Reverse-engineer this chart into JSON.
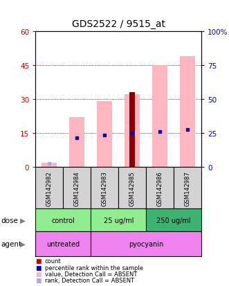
{
  "title": "GDS2522 / 9515_at",
  "samples": [
    "GSM142982",
    "GSM142984",
    "GSM142983",
    "GSM142985",
    "GSM142986",
    "GSM142987"
  ],
  "pink_bars": [
    2.0,
    22.0,
    29.0,
    32.0,
    45.0,
    49.0
  ],
  "red_bars": [
    0.0,
    0.0,
    0.0,
    33.0,
    0.0,
    0.0
  ],
  "blue_squares": [
    null,
    13.0,
    14.0,
    15.0,
    15.5,
    16.5
  ],
  "lavender_squares": [
    1.5,
    null,
    null,
    null,
    null,
    null
  ],
  "ylim_left": [
    0,
    60
  ],
  "ylim_right": [
    0,
    100
  ],
  "yticks_left": [
    0,
    15,
    30,
    45,
    60
  ],
  "yticks_right": [
    0,
    25,
    50,
    75,
    100
  ],
  "yticklabels_right": [
    "0",
    "25",
    "50",
    "75",
    "100%"
  ],
  "yticklabels_left": [
    "0",
    "15",
    "30",
    "45",
    "60"
  ],
  "pink_color": "#FFB6C1",
  "red_color": "#8B0000",
  "blue_color": "#0000CC",
  "lavender_color": "#AAAAEE",
  "axis_color_left": "#CC0000",
  "axis_color_right": "#0000CC",
  "dose_groups": [
    {
      "label": "control",
      "start": 0,
      "end": 2,
      "color": "#90EE90"
    },
    {
      "label": "25 ug/ml",
      "start": 2,
      "end": 4,
      "color": "#90EE90"
    },
    {
      "label": "250 ug/ml",
      "start": 4,
      "end": 6,
      "color": "#3CB371"
    }
  ],
  "agent_groups": [
    {
      "label": "untreated",
      "start": 0,
      "end": 2,
      "color": "#EE82EE"
    },
    {
      "label": "pyocyanin",
      "start": 2,
      "end": 6,
      "color": "#EE82EE"
    }
  ],
  "legend_items": [
    {
      "color": "#CC0000",
      "label": "count"
    },
    {
      "color": "#0000CC",
      "label": "percentile rank within the sample"
    },
    {
      "color": "#FFB6C1",
      "label": "value, Detection Call = ABSENT"
    },
    {
      "color": "#AAAAEE",
      "label": "rank, Detection Call = ABSENT"
    }
  ]
}
